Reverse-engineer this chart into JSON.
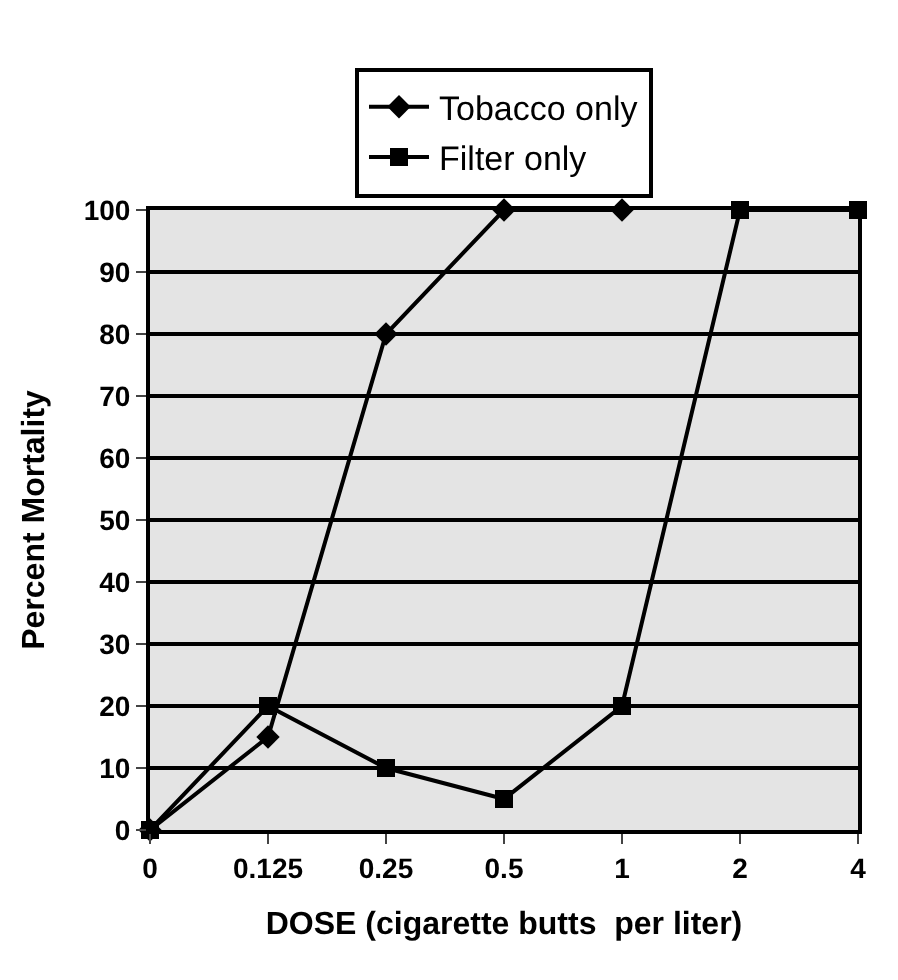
{
  "chart_data": {
    "type": "line",
    "xlabel": "DOSE (cigarette butts  per liter)",
    "ylabel": "Percent Mortality",
    "categories": [
      "0",
      "0.125",
      "0.25",
      "0.5",
      "1",
      "2",
      "4"
    ],
    "series": [
      {
        "name": "Tobacco only",
        "color": "#000000",
        "marker": "diamond",
        "values": [
          0,
          15,
          80,
          100,
          100,
          null,
          null
        ]
      },
      {
        "name": "Filter only",
        "color": "#000000",
        "marker": "square",
        "values": [
          0,
          20,
          10,
          5,
          20,
          100,
          100
        ]
      }
    ],
    "ylim": [
      0,
      100
    ],
    "yticks": [
      0,
      10,
      20,
      30,
      40,
      50,
      60,
      70,
      80,
      90,
      100
    ],
    "grid": "y",
    "legend": "top",
    "line_style": "solid"
  }
}
